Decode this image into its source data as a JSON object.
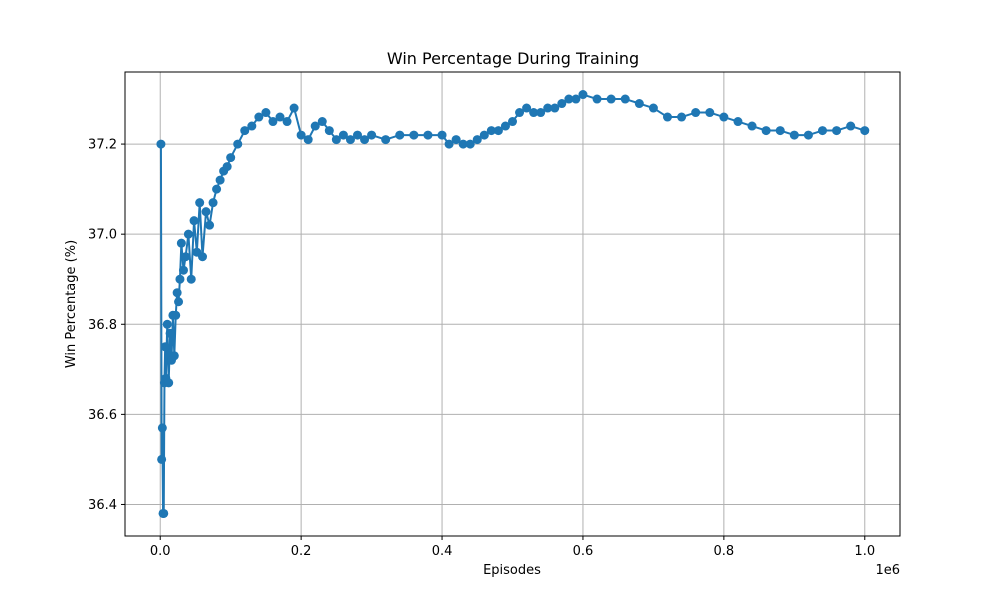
{
  "chart_data": {
    "type": "line",
    "title": "Win Percentage During Training",
    "xlabel": "Episodes",
    "ylabel": "Win Percentage (%)",
    "x_offset_label": "1e6",
    "xlim": [
      -50000,
      1050000
    ],
    "ylim": [
      36.33,
      37.36
    ],
    "xticks": [
      0,
      200000,
      400000,
      600000,
      800000,
      1000000
    ],
    "xtick_labels": [
      "0.0",
      "0.2",
      "0.4",
      "0.6",
      "0.8",
      "1.0"
    ],
    "yticks": [
      36.4,
      36.6,
      36.8,
      37.0,
      37.2
    ],
    "ytick_labels": [
      "36.4",
      "36.6",
      "36.8",
      "37.0",
      "37.2"
    ],
    "grid": true,
    "legend": "none",
    "series": [
      {
        "color": "#1f77b4",
        "marker": "circle",
        "x": [
          1000,
          2000,
          3000,
          4000,
          5000,
          6000,
          7000,
          8000,
          10000,
          12000,
          14000,
          16000,
          18000,
          20000,
          22000,
          24000,
          26000,
          28000,
          30000,
          33000,
          36000,
          40000,
          44000,
          48000,
          52000,
          56000,
          60000,
          65000,
          70000,
          75000,
          80000,
          85000,
          90000,
          95000,
          100000,
          110000,
          120000,
          130000,
          140000,
          150000,
          160000,
          170000,
          180000,
          190000,
          200000,
          210000,
          220000,
          230000,
          240000,
          250000,
          260000,
          270000,
          280000,
          290000,
          300000,
          320000,
          340000,
          360000,
          380000,
          400000,
          410000,
          420000,
          430000,
          440000,
          450000,
          460000,
          470000,
          480000,
          490000,
          500000,
          510000,
          520000,
          530000,
          540000,
          550000,
          560000,
          570000,
          580000,
          590000,
          600000,
          620000,
          640000,
          660000,
          680000,
          700000,
          720000,
          740000,
          760000,
          780000,
          800000,
          820000,
          840000,
          860000,
          880000,
          900000,
          920000,
          940000,
          960000,
          980000,
          1000000
        ],
        "y": [
          37.2,
          36.5,
          36.57,
          36.38,
          36.38,
          36.67,
          36.75,
          36.68,
          36.8,
          36.67,
          36.78,
          36.72,
          36.82,
          36.73,
          36.82,
          36.87,
          36.85,
          36.9,
          36.98,
          36.92,
          36.95,
          37.0,
          36.9,
          37.03,
          36.96,
          37.07,
          36.95,
          37.05,
          37.02,
          37.07,
          37.1,
          37.12,
          37.14,
          37.15,
          37.17,
          37.2,
          37.23,
          37.24,
          37.26,
          37.27,
          37.25,
          37.26,
          37.25,
          37.28,
          37.22,
          37.21,
          37.24,
          37.25,
          37.23,
          37.21,
          37.22,
          37.21,
          37.22,
          37.21,
          37.22,
          37.21,
          37.22,
          37.22,
          37.22,
          37.22,
          37.2,
          37.21,
          37.2,
          37.2,
          37.21,
          37.22,
          37.23,
          37.23,
          37.24,
          37.25,
          37.27,
          37.28,
          37.27,
          37.27,
          37.28,
          37.28,
          37.29,
          37.3,
          37.3,
          37.31,
          37.3,
          37.3,
          37.3,
          37.29,
          37.28,
          37.26,
          37.26,
          37.27,
          37.27,
          37.26,
          37.25,
          37.24,
          37.23,
          37.23,
          37.22,
          37.22,
          37.23,
          37.23,
          37.24,
          37.23
        ]
      }
    ]
  }
}
